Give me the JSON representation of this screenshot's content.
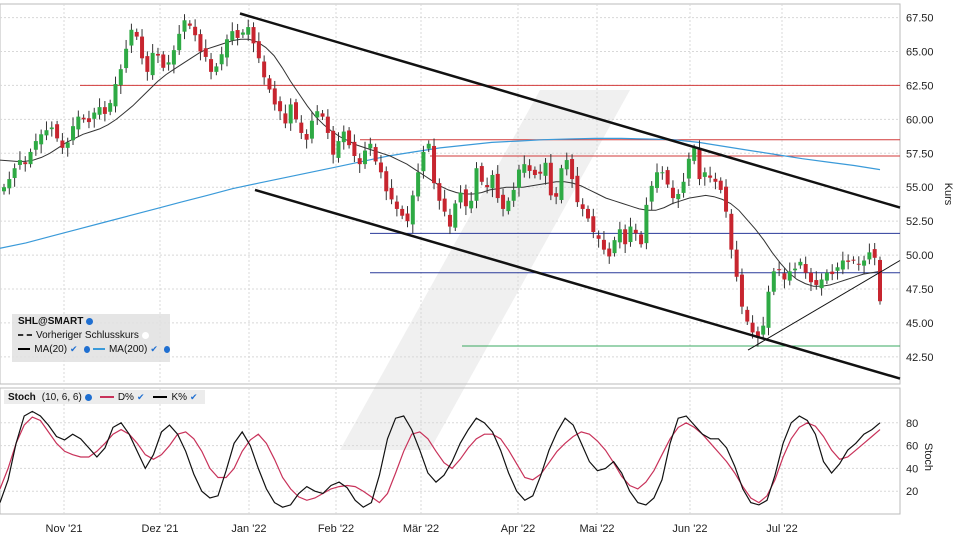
{
  "chart_data": [
    {
      "type": "candlestick",
      "symbol": "SHL@SMART",
      "ylabel": "Kurs",
      "ylim": [
        40.5,
        68.5
      ],
      "y_ticks": [
        "67.50",
        "65.00",
        "62.50",
        "60.00",
        "57.50",
        "55.00",
        "52.50",
        "50.00",
        "47.50",
        "45.00",
        "42.50"
      ],
      "x_ticks": [
        "Nov '21",
        "Dez '21",
        "Jan '22",
        "Feb '22",
        "Mär '22",
        "Apr '22",
        "Mai '22",
        "Jun '22",
        "Jul '22"
      ],
      "close_series": [
        55.0,
        55.6,
        56.4,
        57.0,
        56.7,
        57.6,
        58.4,
        58.9,
        59.2,
        59.4,
        58.6,
        57.9,
        58.3,
        59.5,
        60.2,
        60.0,
        59.8,
        60.5,
        60.9,
        60.4,
        61.2,
        62.6,
        63.7,
        65.2,
        66.6,
        66.1,
        64.5,
        63.5,
        64.9,
        64.7,
        63.8,
        64.2,
        65.1,
        66.3,
        67.3,
        66.9,
        66.2,
        65.0,
        64.6,
        63.5,
        63.9,
        64.8,
        65.9,
        66.5,
        66.0,
        66.4,
        66.8,
        65.6,
        64.5,
        63.1,
        62.2,
        61.1,
        60.6,
        59.7,
        61.1,
        60.0,
        59.0,
        58.5,
        59.9,
        60.6,
        60.2,
        59.0,
        57.4,
        58.4,
        59.1,
        58.1,
        57.3,
        56.7,
        57.7,
        58.2,
        56.9,
        56.1,
        54.7,
        54.1,
        53.4,
        52.9,
        52.5,
        54.4,
        56.1,
        57.6,
        58.2,
        55.3,
        54.0,
        53.2,
        52.1,
        53.8,
        54.6,
        53.6,
        54.0,
        56.4,
        55.4,
        55.0,
        55.9,
        54.2,
        53.4,
        54.0,
        54.8,
        56.3,
        56.7,
        56.2,
        55.9,
        56.0,
        56.8,
        54.4,
        54.3,
        56.4,
        57.0,
        55.6,
        53.9,
        53.4,
        52.7,
        51.7,
        51.2,
        50.4,
        49.9,
        51.1,
        51.9,
        50.8,
        52.1,
        51.6,
        50.8,
        53.7,
        55.1,
        56.1,
        56.1,
        55.2,
        54.2,
        54.5,
        55.4,
        57.1,
        57.9,
        55.6,
        56.1,
        55.7,
        55.4,
        54.8,
        53.2,
        50.4,
        48.4,
        46.2,
        45.1,
        44.3,
        43.9,
        44.8,
        47.3,
        48.8,
        48.9,
        48.2,
        48.8,
        49.0,
        49.5,
        48.7,
        48.0,
        47.8,
        48.2,
        48.7,
        48.6,
        49.1,
        49.6,
        49.5,
        49.6,
        49.3,
        49.6,
        50.2,
        49.8,
        46.6
      ],
      "ma20": [
        57.0,
        56.95,
        56.9,
        56.9,
        57.0,
        57.2,
        57.5,
        57.9,
        58.3,
        58.6,
        58.9,
        59.1,
        59.3,
        59.6,
        60.0,
        60.5,
        61.0,
        61.6,
        62.2,
        62.8,
        63.3,
        63.7,
        64.1,
        64.5,
        64.9,
        65.2,
        65.4,
        65.6,
        65.8,
        65.9,
        65.9,
        65.7,
        65.3,
        64.7,
        63.8,
        62.8,
        61.9,
        61.0,
        60.2,
        59.6,
        59.1,
        58.7,
        58.4,
        58.1,
        57.9,
        57.7,
        57.5,
        57.3,
        57.0,
        56.7,
        56.3,
        55.9,
        55.5,
        55.1,
        54.8,
        54.6,
        54.5,
        54.5,
        54.6,
        54.8,
        54.9,
        55.0,
        55.0,
        55.0,
        55.1,
        55.2,
        55.3,
        55.4,
        55.4,
        55.3,
        55.1,
        54.8,
        54.5,
        54.2,
        54.0,
        53.8,
        53.6,
        53.4,
        53.3,
        53.3,
        53.5,
        53.8,
        54.0,
        54.2,
        54.3,
        54.4,
        54.3,
        54.1,
        53.8,
        53.3,
        52.6,
        51.9,
        51.1,
        50.2,
        49.4,
        48.7,
        48.2,
        47.9,
        47.7,
        47.7,
        47.8,
        48.0,
        48.2,
        48.4,
        48.6,
        48.7,
        48.8
      ],
      "ma200": [
        50.5,
        50.9,
        51.4,
        51.9,
        52.4,
        52.9,
        53.4,
        53.9,
        54.4,
        54.9,
        55.3,
        55.7,
        56.1,
        56.5,
        56.9,
        57.3,
        57.6,
        57.9,
        58.1,
        58.3,
        58.4,
        58.5,
        58.55,
        58.6,
        58.6,
        58.55,
        58.5,
        58.3,
        58.0,
        57.7,
        57.4,
        57.1,
        56.85,
        56.6,
        56.3
      ],
      "horizontal_levels": [
        62.5,
        58.5,
        57.3,
        51.6,
        48.7,
        43.3
      ],
      "channel_upper": [
        [
          0.0,
          67.8
        ],
        [
          1.0,
          53.5
        ]
      ],
      "channel_lower": [
        [
          0.0,
          54.8
        ],
        [
          1.0,
          40.9
        ]
      ],
      "uptrend_line": [
        [
          0.0,
          43.0
        ],
        [
          1.0,
          49.6
        ]
      ]
    },
    {
      "type": "line",
      "indicator": "Stoch",
      "params": "(10, 6, 6)",
      "ylabel": "Stoch",
      "ylim": [
        0,
        100
      ],
      "y_ticks": [
        "80",
        "60",
        "40",
        "20"
      ],
      "series": [
        {
          "name": "D%",
          "color": "#c8325a",
          "values": [
            22,
            40,
            62,
            78,
            85,
            82,
            72,
            62,
            55,
            52,
            50,
            50,
            55,
            62,
            70,
            74,
            70,
            62,
            52,
            48,
            52,
            60,
            70,
            72,
            66,
            55,
            40,
            32,
            32,
            40,
            55,
            65,
            70,
            62,
            48,
            32,
            22,
            15,
            12,
            14,
            18,
            22,
            24,
            25,
            24,
            20,
            15,
            10,
            18,
            36,
            55,
            70,
            72,
            66,
            55,
            45,
            40,
            48,
            58,
            66,
            70,
            70,
            66,
            56,
            44,
            32,
            30,
            35,
            45,
            55,
            62,
            68,
            72,
            70,
            64,
            56,
            45,
            33,
            25,
            22,
            28,
            38,
            52,
            66,
            76,
            80,
            76,
            70,
            62,
            54,
            46,
            36,
            24,
            14,
            10,
            16,
            30,
            50,
            66,
            76,
            80,
            77,
            68,
            56,
            48,
            50,
            56,
            62,
            68,
            74
          ]
        },
        {
          "name": "K%",
          "color": "#111111",
          "values": [
            10,
            30,
            62,
            86,
            90,
            86,
            78,
            68,
            65,
            70,
            66,
            58,
            50,
            58,
            76,
            80,
            70,
            55,
            40,
            52,
            72,
            78,
            70,
            55,
            35,
            20,
            14,
            16,
            38,
            62,
            72,
            60,
            40,
            22,
            10,
            6,
            8,
            18,
            24,
            20,
            18,
            25,
            28,
            23,
            12,
            6,
            10,
            34,
            66,
            84,
            86,
            74,
            56,
            36,
            28,
            34,
            46,
            62,
            74,
            84,
            80,
            72,
            56,
            36,
            20,
            12,
            16,
            34,
            56,
            72,
            84,
            78,
            62,
            46,
            38,
            40,
            46,
            36,
            20,
            10,
            8,
            14,
            30,
            62,
            84,
            86,
            78,
            70,
            66,
            66,
            58,
            42,
            22,
            10,
            8,
            12,
            34,
            62,
            80,
            86,
            82,
            70,
            46,
            36,
            44,
            56,
            62,
            70,
            74,
            80
          ]
        }
      ]
    }
  ]
}
